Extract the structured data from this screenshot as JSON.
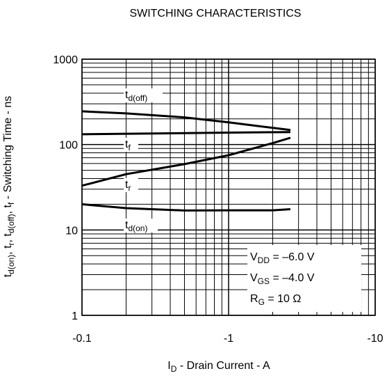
{
  "chart_data": {
    "type": "line",
    "title": "SWITCHING CHARACTERISTICS",
    "x_label": [
      {
        "text": "I"
      },
      {
        "text": "D",
        "sub": true
      },
      {
        "text": " - Drain Current - A"
      }
    ],
    "y_label": [
      {
        "text": "t"
      },
      {
        "text": "d(on)",
        "sub": true
      },
      {
        "text": ", t"
      },
      {
        "text": "r",
        "sub": true
      },
      {
        "text": ", t"
      },
      {
        "text": "d(off)",
        "sub": true
      },
      {
        "text": ", t"
      },
      {
        "text": "f",
        "sub": true
      },
      {
        "text": " - Switching Time - ns"
      }
    ],
    "xscale": "log",
    "yscale": "log",
    "xlim": [
      -0.1,
      -10
    ],
    "xticks": [
      -0.1,
      -1,
      -10
    ],
    "ylim": [
      1,
      1000
    ],
    "yticks": [
      1,
      10,
      100,
      1000
    ],
    "grid": true,
    "minor_grid": true,
    "series": [
      {
        "name": "t",
        "subscript": "d(off)",
        "color": "#000000",
        "x": [
          -0.1,
          -0.2,
          -0.5,
          -1,
          -2,
          -2.64
        ],
        "values": [
          245,
          232,
          208,
          182,
          157,
          148
        ]
      },
      {
        "name": "t",
        "subscript": "f",
        "color": "#000000",
        "x": [
          -0.1,
          -1,
          -2.64
        ],
        "values": [
          132,
          138,
          140
        ]
      },
      {
        "name": "t",
        "subscript": "r",
        "color": "#000000",
        "x": [
          -0.1,
          -0.2,
          -0.5,
          -1,
          -2,
          -2.64
        ],
        "values": [
          33,
          45,
          59,
          75,
          104,
          120
        ]
      },
      {
        "name": "t",
        "subscript": "d(on)",
        "color": "#000000",
        "x": [
          -0.1,
          -0.2,
          -0.5,
          -1,
          -2,
          -2.64
        ],
        "values": [
          20,
          18,
          16.9,
          17,
          17,
          17.5
        ]
      }
    ],
    "conditions": [
      [
        {
          "text": "V"
        },
        {
          "text": "DD",
          "sub": true
        },
        {
          "text": " = –6.0 V"
        }
      ],
      [
        {
          "text": "V"
        },
        {
          "text": "GS",
          "sub": true
        },
        {
          "text": " = –4.0 V"
        }
      ],
      [
        {
          "text": "R"
        },
        {
          "text": "G",
          "sub": true
        },
        {
          "text": " = 10 Ω"
        }
      ]
    ]
  }
}
